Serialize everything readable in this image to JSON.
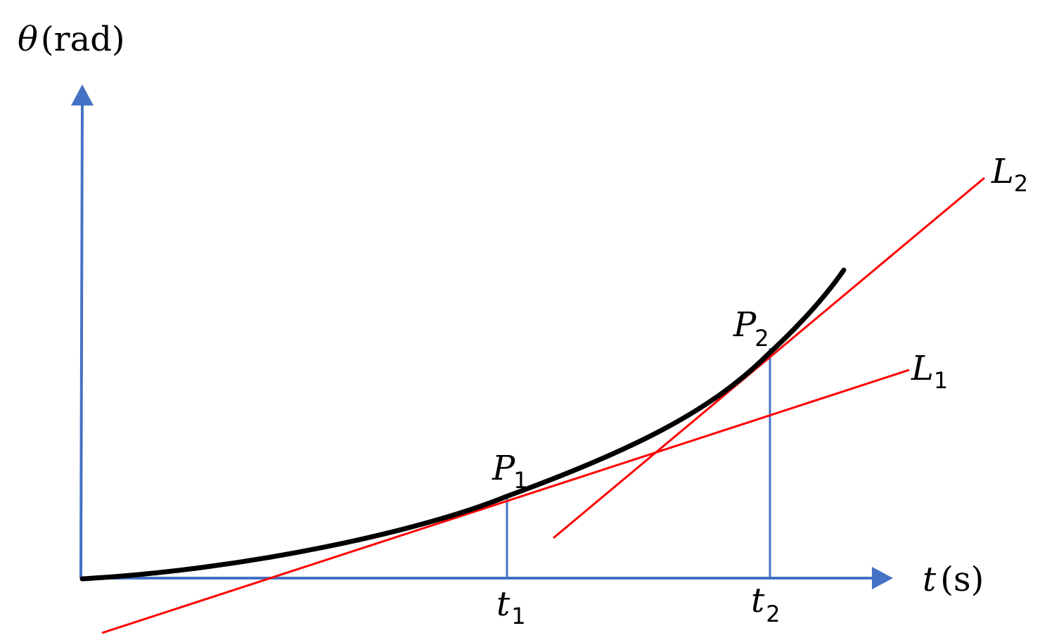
{
  "colors": {
    "axis": "#4472C4",
    "curve": "#000000",
    "tangent": "#FF0000",
    "guide": "#4472C4"
  },
  "axes": {
    "y_symbol": "θ",
    "y_unit": "(rad)",
    "x_symbol": "t",
    "x_unit": "(s)"
  },
  "ticks": {
    "t1": {
      "base": "t",
      "sub": "1"
    },
    "t2": {
      "base": "t",
      "sub": "2"
    }
  },
  "points": {
    "P1": {
      "base": "P",
      "sub": "1"
    },
    "P2": {
      "base": "P",
      "sub": "2"
    }
  },
  "lines": {
    "L1": {
      "base": "L",
      "sub": "1"
    },
    "L2": {
      "base": "L",
      "sub": "2"
    }
  }
}
